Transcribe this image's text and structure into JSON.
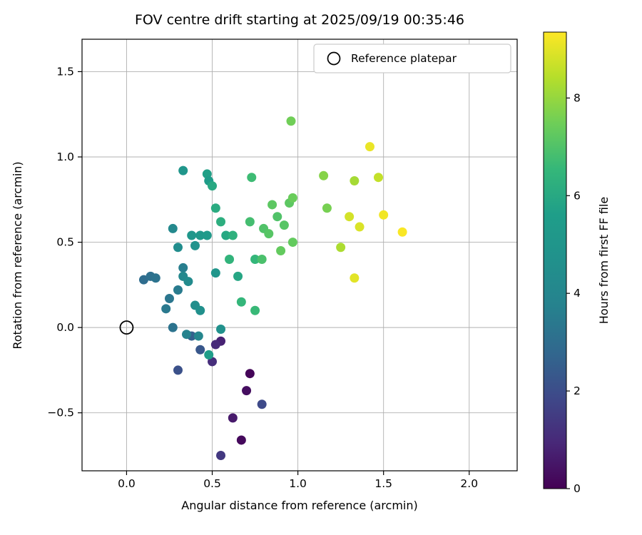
{
  "figure": {
    "title": "FOV centre drift starting at 2025/09/19 00:35:46"
  },
  "chart_data": {
    "type": "scatter",
    "title": "FOV centre drift starting at 2025/09/19 00:35:46",
    "xlabel": "Angular distance from reference (arcmin)",
    "ylabel": "Rotation from reference (arcmin)",
    "xlim": [
      -0.26,
      2.28
    ],
    "ylim": [
      -0.84,
      1.69
    ],
    "xticks": [
      0.0,
      0.5,
      1.0,
      1.5,
      2.0
    ],
    "yticks": [
      -0.5,
      0.0,
      0.5,
      1.0,
      1.5
    ],
    "grid": true,
    "grid_color": "#b0b0b0",
    "legend": {
      "label": "Reference platepar",
      "position": "upper right",
      "marker": "open-circle",
      "border_color": "#cccccc"
    },
    "reference_point": {
      "x": 0.0,
      "y": 0.0
    },
    "colorbar": {
      "label": "Hours from first FF file",
      "ticks": [
        0,
        2,
        4,
        6,
        8
      ],
      "vmin": 0,
      "vmax": 9.35,
      "colormap": "viridis",
      "colormap_hex": [
        "#440154",
        "#482878",
        "#3e4989",
        "#31688e",
        "#26828e",
        "#21918c",
        "#1f9e89",
        "#35b779",
        "#6ece58",
        "#b5de2b",
        "#fde725"
      ]
    },
    "points_format": [
      "x_arcmin",
      "y_arcmin",
      "hours"
    ],
    "points": [
      [
        0.55,
        -0.75,
        1.4
      ],
      [
        0.67,
        -0.66,
        0.2
      ],
      [
        0.62,
        -0.53,
        0.6
      ],
      [
        0.79,
        -0.45,
        1.9
      ],
      [
        0.7,
        -0.37,
        0.3
      ],
      [
        0.72,
        -0.27,
        0.1
      ],
      [
        0.55,
        -0.08,
        0.8
      ],
      [
        0.52,
        -0.1,
        1.0
      ],
      [
        0.5,
        -0.2,
        1.1
      ],
      [
        0.3,
        -0.25,
        2.1
      ],
      [
        0.43,
        -0.13,
        2.3
      ],
      [
        0.38,
        -0.05,
        2.6
      ],
      [
        0.1,
        0.28,
        3.0
      ],
      [
        0.14,
        0.3,
        3.1
      ],
      [
        0.17,
        0.29,
        3.2
      ],
      [
        0.23,
        0.11,
        3.4
      ],
      [
        0.25,
        0.17,
        3.3
      ],
      [
        0.27,
        0.0,
        3.2
      ],
      [
        0.3,
        0.22,
        3.5
      ],
      [
        0.33,
        0.35,
        3.6
      ],
      [
        0.27,
        0.58,
        4.2
      ],
      [
        0.3,
        0.47,
        4.4
      ],
      [
        0.33,
        0.3,
        4.1
      ],
      [
        0.36,
        0.27,
        4.3
      ],
      [
        0.4,
        0.13,
        4.5
      ],
      [
        0.43,
        0.1,
        4.6
      ],
      [
        0.42,
        -0.05,
        4.0
      ],
      [
        0.35,
        -0.04,
        3.8
      ],
      [
        0.33,
        0.92,
        5.0
      ],
      [
        0.38,
        0.54,
        5.1
      ],
      [
        0.43,
        0.54,
        5.2
      ],
      [
        0.4,
        0.48,
        4.8
      ],
      [
        0.47,
        0.54,
        5.3
      ],
      [
        0.52,
        0.32,
        5.0
      ],
      [
        0.55,
        -0.01,
        4.7
      ],
      [
        0.48,
        -0.16,
        5.6
      ],
      [
        0.47,
        0.9,
        5.7
      ],
      [
        0.48,
        0.86,
        5.5
      ],
      [
        0.5,
        0.83,
        6.0
      ],
      [
        0.52,
        0.7,
        6.1
      ],
      [
        0.55,
        0.62,
        6.2
      ],
      [
        0.58,
        0.54,
        6.0
      ],
      [
        0.62,
        0.54,
        6.3
      ],
      [
        0.6,
        0.4,
        6.4
      ],
      [
        0.65,
        0.3,
        5.9
      ],
      [
        0.67,
        0.15,
        6.5
      ],
      [
        0.75,
        0.1,
        6.6
      ],
      [
        0.73,
        0.88,
        6.7
      ],
      [
        0.72,
        0.62,
        6.8
      ],
      [
        0.75,
        0.4,
        6.5
      ],
      [
        0.79,
        0.4,
        6.9
      ],
      [
        0.8,
        0.58,
        7.0
      ],
      [
        0.83,
        0.55,
        7.1
      ],
      [
        0.85,
        0.72,
        7.2
      ],
      [
        0.88,
        0.65,
        7.0
      ],
      [
        0.9,
        0.45,
        7.3
      ],
      [
        0.92,
        0.6,
        7.1
      ],
      [
        0.95,
        0.73,
        7.2
      ],
      [
        0.97,
        0.76,
        7.4
      ],
      [
        0.97,
        0.5,
        7.3
      ],
      [
        0.96,
        1.21,
        7.5
      ],
      [
        1.15,
        0.89,
        7.8
      ],
      [
        1.17,
        0.7,
        7.6
      ],
      [
        1.25,
        0.47,
        8.3
      ],
      [
        1.3,
        0.65,
        8.8
      ],
      [
        1.33,
        0.86,
        8.2
      ],
      [
        1.36,
        0.59,
        8.9
      ],
      [
        1.33,
        0.29,
        9.0
      ],
      [
        1.42,
        1.06,
        9.1
      ],
      [
        1.47,
        0.88,
        8.6
      ],
      [
        1.5,
        0.66,
        9.2
      ],
      [
        1.61,
        0.56,
        9.3
      ]
    ]
  }
}
